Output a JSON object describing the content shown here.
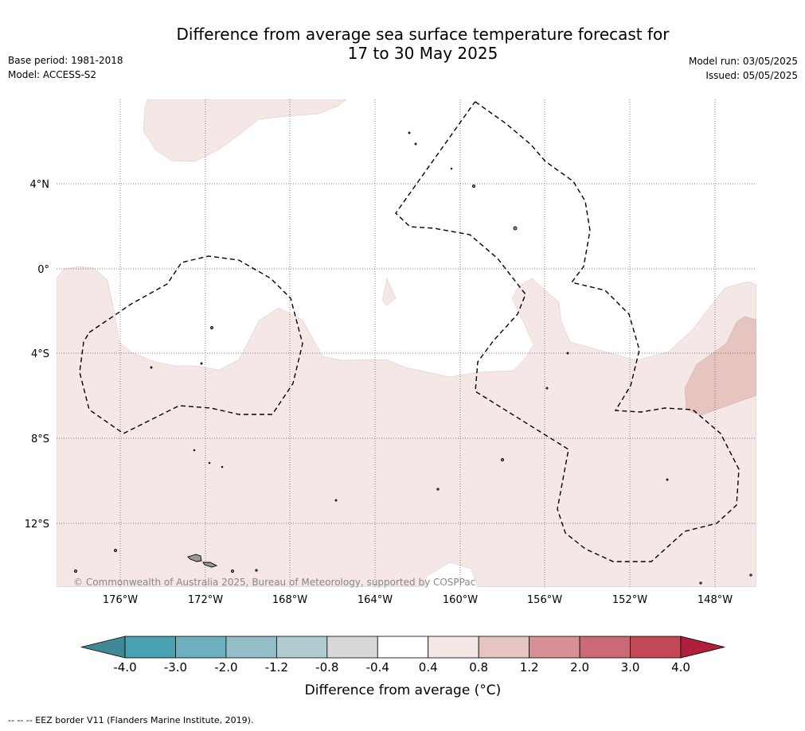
{
  "title": {
    "line1": "Difference from average sea surface temperature forecast for",
    "line2": "17 to 30 May 2025"
  },
  "meta_left": {
    "base_period": "Base period: 1981-2018",
    "model": "Model: ACCESS-S2"
  },
  "meta_right": {
    "model_run": "Model run: 03/05/2025",
    "issued": "Issued: 05/05/2025"
  },
  "map": {
    "lat_labels": [
      "4°N",
      "0°",
      "4°S",
      "8°S",
      "12°S"
    ],
    "lon_labels": [
      "176°W",
      "172°W",
      "168°W",
      "164°W",
      "160°W",
      "156°W",
      "152°W",
      "148°W"
    ],
    "copyright": "© Commonwealth of Australia 2025, Bureau of Meteorology, supported by COSPPac",
    "fill_colors": {
      "anomaly_0_4_to_0_8": "#f4e7e6",
      "anomaly_0_8_to_1_2": "#e6c4c0",
      "land": "#999999"
    }
  },
  "colorbar": {
    "levels": [
      "-4.0",
      "-3.0",
      "-2.0",
      "-1.2",
      "-0.8",
      "-0.4",
      "0.4",
      "0.8",
      "1.2",
      "2.0",
      "3.0",
      "4.0"
    ],
    "colors": [
      "#3e8993",
      "#4aa1b1",
      "#6eb0bf",
      "#92bec8",
      "#b1ccd1",
      "#d7d8d8",
      "#ffffff",
      "#f4e7e6",
      "#e6c4c0",
      "#d79196",
      "#cc6977",
      "#c24858",
      "#b0203c"
    ],
    "label": "Difference from average (°C)"
  },
  "footer": "-- -- -- EEZ border V11 (Flanders Marine Institute, 2019)."
}
